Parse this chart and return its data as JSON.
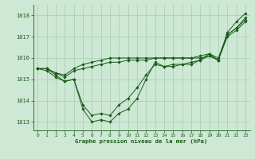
{
  "bg_color": "#cde8d4",
  "grid_color": "#b0d4b8",
  "line_color": "#1a5c1a",
  "marker_color": "#1a5c1a",
  "xlabel": "Graphe pression niveau de la mer (hPa)",
  "xlabel_color": "#1a5c1a",
  "tick_color": "#1a5c1a",
  "ylim": [
    1012.6,
    1018.5
  ],
  "yticks": [
    1013,
    1014,
    1015,
    1016,
    1017,
    1018
  ],
  "xlim": [
    -0.5,
    23.5
  ],
  "xticks": [
    0,
    1,
    2,
    3,
    4,
    5,
    6,
    7,
    8,
    9,
    10,
    11,
    12,
    13,
    14,
    15,
    16,
    17,
    18,
    19,
    20,
    21,
    22,
    23
  ],
  "series": [
    [
      1015.5,
      1015.5,
      1015.2,
      1014.9,
      1015.0,
      1013.6,
      1013.0,
      1013.1,
      1013.0,
      1013.4,
      1013.6,
      1014.1,
      1015.0,
      1015.8,
      1015.6,
      1015.6,
      1015.7,
      1015.7,
      1015.9,
      1016.2,
      1015.9,
      1017.2,
      1017.7,
      1018.1
    ],
    [
      1015.5,
      1015.4,
      1015.1,
      1014.9,
      1015.0,
      1013.8,
      1013.3,
      1013.4,
      1013.3,
      1013.8,
      1014.1,
      1014.6,
      1015.2,
      1015.7,
      1015.6,
      1015.7,
      1015.7,
      1015.8,
      1015.9,
      1016.1,
      1015.9,
      1017.1,
      1017.4,
      1017.8
    ],
    [
      1015.5,
      1015.5,
      1015.3,
      1015.1,
      1015.4,
      1015.5,
      1015.6,
      1015.7,
      1015.8,
      1015.8,
      1015.9,
      1015.9,
      1015.9,
      1016.0,
      1016.0,
      1016.0,
      1016.0,
      1016.0,
      1016.0,
      1016.1,
      1015.9,
      1017.0,
      1017.3,
      1017.7
    ],
    [
      1015.5,
      1015.5,
      1015.3,
      1015.2,
      1015.5,
      1015.7,
      1015.8,
      1015.9,
      1016.0,
      1016.0,
      1016.0,
      1016.0,
      1016.0,
      1016.0,
      1016.0,
      1016.0,
      1016.0,
      1016.0,
      1016.1,
      1016.2,
      1016.0,
      1017.1,
      1017.4,
      1017.9
    ]
  ]
}
